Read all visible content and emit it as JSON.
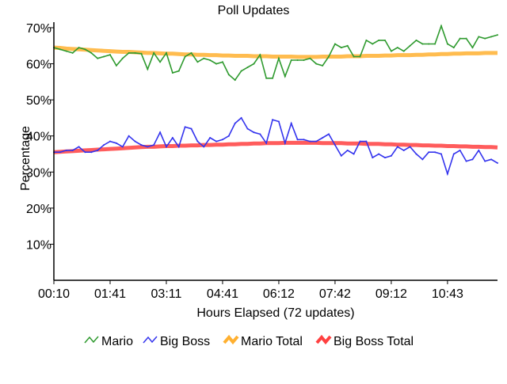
{
  "chart_data": {
    "type": "line",
    "title": "Poll Updates",
    "xlabel": "Hours Elapsed (72 updates)",
    "ylabel": "Percentage",
    "ylim": [
      0,
      70
    ],
    "yticks": [
      "10%",
      "20%",
      "30%",
      "40%",
      "50%",
      "60%",
      "70%"
    ],
    "ytick_values": [
      10,
      20,
      30,
      40,
      50,
      60,
      70
    ],
    "xtick_labels": [
      "00:10",
      "01:41",
      "03:11",
      "04:41",
      "06:12",
      "07:42",
      "09:12",
      "10:43"
    ],
    "xtick_indices": [
      0,
      9,
      18,
      27,
      36,
      45,
      54,
      63
    ],
    "legend_position": "bottom",
    "series": [
      {
        "name": "Mario",
        "color": "#2e9a2e",
        "style": "thin",
        "values": [
          64.5,
          64,
          63.5,
          63,
          64.5,
          64,
          63,
          61.5,
          62,
          62.5,
          59.5,
          61.5,
          63,
          63,
          62.8,
          58.5,
          63,
          60.5,
          63,
          57.5,
          58,
          62,
          63,
          60.5,
          61.5,
          61,
          60,
          60.5,
          57,
          55.5,
          58,
          59,
          60,
          62.5,
          56,
          56,
          61.5,
          56.5,
          61,
          61,
          61,
          61.5,
          60,
          59.5,
          62,
          65.5,
          64.5,
          65,
          62,
          62,
          66.5,
          65.5,
          66.5,
          66.5,
          63.5,
          64.5,
          63.5,
          65,
          66.5,
          65.5,
          65.5,
          65.5,
          70.5,
          65.5,
          64.5,
          67,
          67,
          64.5,
          67.5,
          67,
          67.5,
          68
        ]
      },
      {
        "name": "Big Boss",
        "color": "#3333ee",
        "style": "thin",
        "values": [
          35.5,
          35.5,
          36,
          36,
          37,
          35.5,
          35.5,
          36,
          37.5,
          38.5,
          38,
          37,
          40,
          38.5,
          37.5,
          37,
          37.5,
          41,
          37,
          39.5,
          37,
          42.5,
          42,
          38.5,
          37,
          39.5,
          38.5,
          39,
          40,
          43.5,
          45,
          42,
          41,
          40.5,
          38,
          44.5,
          44,
          38,
          43.5,
          39,
          39,
          38.5,
          38.5,
          39.5,
          40.5,
          37.5,
          34.5,
          36,
          35,
          38.5,
          38.5,
          34,
          35,
          34,
          34.5,
          37,
          36,
          37,
          35,
          33.5,
          35.5,
          35.5,
          35,
          29.5,
          35,
          36,
          33,
          33.5,
          36,
          33,
          33.5,
          32.5
        ]
      },
      {
        "name": "Mario Total",
        "color": "#ffb030",
        "style": "thick",
        "values": [
          64.5,
          64.4,
          64.2,
          64.1,
          64.0,
          63.9,
          63.8,
          63.7,
          63.6,
          63.5,
          63.4,
          63.3,
          63.3,
          63.2,
          63.1,
          63.0,
          63.0,
          62.9,
          62.8,
          62.8,
          62.7,
          62.6,
          62.6,
          62.5,
          62.5,
          62.4,
          62.4,
          62.3,
          62.3,
          62.2,
          62.2,
          62.2,
          62.1,
          62.1,
          62.1,
          62.0,
          62.0,
          62.0,
          62.0,
          61.9,
          61.9,
          61.9,
          61.9,
          62.0,
          62.0,
          62.0,
          62.0,
          62.1,
          62.1,
          62.1,
          62.2,
          62.2,
          62.2,
          62.3,
          62.3,
          62.4,
          62.4,
          62.4,
          62.5,
          62.5,
          62.6,
          62.6,
          62.7,
          62.7,
          62.8,
          62.8,
          62.9,
          62.9,
          62.9,
          63.0,
          63.0,
          63.0
        ]
      },
      {
        "name": "Big Boss Total",
        "color": "#ff4040",
        "style": "thick",
        "values": [
          35.5,
          35.6,
          35.7,
          35.8,
          35.9,
          36.0,
          36.1,
          36.2,
          36.3,
          36.4,
          36.5,
          36.6,
          36.7,
          36.8,
          36.9,
          37.0,
          37.0,
          37.1,
          37.2,
          37.2,
          37.3,
          37.3,
          37.4,
          37.4,
          37.5,
          37.5,
          37.6,
          37.6,
          37.7,
          37.7,
          37.8,
          37.8,
          37.9,
          37.9,
          38.0,
          38.0,
          38.0,
          38.1,
          38.1,
          38.1,
          38.1,
          38.1,
          38.1,
          38.0,
          38.0,
          38.0,
          38.0,
          37.9,
          37.9,
          37.9,
          37.8,
          37.8,
          37.8,
          37.7,
          37.7,
          37.6,
          37.6,
          37.5,
          37.5,
          37.4,
          37.4,
          37.3,
          37.3,
          37.2,
          37.2,
          37.1,
          37.1,
          37.0,
          37.0,
          36.9,
          36.9,
          36.8
        ]
      }
    ]
  }
}
